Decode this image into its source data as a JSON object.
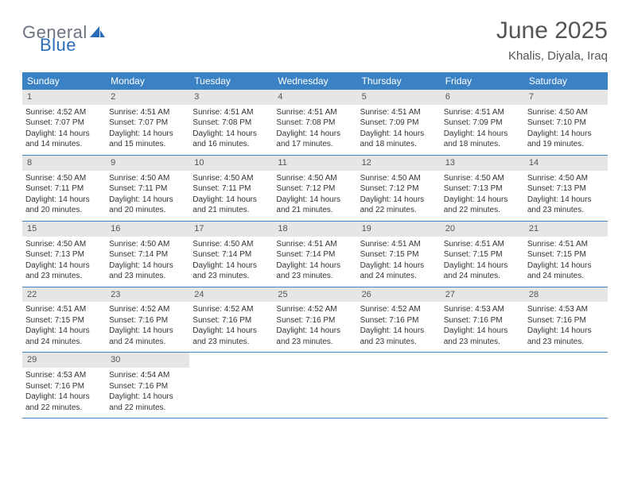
{
  "brand": {
    "word1": "General",
    "word2": "Blue"
  },
  "title": "June 2025",
  "location": "Khalis, Diyala, Iraq",
  "colors": {
    "header_bg": "#3b82c4",
    "header_text": "#ffffff",
    "daynum_bg": "#e6e6e6",
    "border": "#3b82c4",
    "logo_gray": "#6b7280",
    "logo_blue": "#2a6db8"
  },
  "weekdays": [
    "Sunday",
    "Monday",
    "Tuesday",
    "Wednesday",
    "Thursday",
    "Friday",
    "Saturday"
  ],
  "weeks": [
    [
      {
        "n": 1,
        "sr": "4:52 AM",
        "ss": "7:07 PM",
        "dl": "14 hours and 14 minutes."
      },
      {
        "n": 2,
        "sr": "4:51 AM",
        "ss": "7:07 PM",
        "dl": "14 hours and 15 minutes."
      },
      {
        "n": 3,
        "sr": "4:51 AM",
        "ss": "7:08 PM",
        "dl": "14 hours and 16 minutes."
      },
      {
        "n": 4,
        "sr": "4:51 AM",
        "ss": "7:08 PM",
        "dl": "14 hours and 17 minutes."
      },
      {
        "n": 5,
        "sr": "4:51 AM",
        "ss": "7:09 PM",
        "dl": "14 hours and 18 minutes."
      },
      {
        "n": 6,
        "sr": "4:51 AM",
        "ss": "7:09 PM",
        "dl": "14 hours and 18 minutes."
      },
      {
        "n": 7,
        "sr": "4:50 AM",
        "ss": "7:10 PM",
        "dl": "14 hours and 19 minutes."
      }
    ],
    [
      {
        "n": 8,
        "sr": "4:50 AM",
        "ss": "7:11 PM",
        "dl": "14 hours and 20 minutes."
      },
      {
        "n": 9,
        "sr": "4:50 AM",
        "ss": "7:11 PM",
        "dl": "14 hours and 20 minutes."
      },
      {
        "n": 10,
        "sr": "4:50 AM",
        "ss": "7:11 PM",
        "dl": "14 hours and 21 minutes."
      },
      {
        "n": 11,
        "sr": "4:50 AM",
        "ss": "7:12 PM",
        "dl": "14 hours and 21 minutes."
      },
      {
        "n": 12,
        "sr": "4:50 AM",
        "ss": "7:12 PM",
        "dl": "14 hours and 22 minutes."
      },
      {
        "n": 13,
        "sr": "4:50 AM",
        "ss": "7:13 PM",
        "dl": "14 hours and 22 minutes."
      },
      {
        "n": 14,
        "sr": "4:50 AM",
        "ss": "7:13 PM",
        "dl": "14 hours and 23 minutes."
      }
    ],
    [
      {
        "n": 15,
        "sr": "4:50 AM",
        "ss": "7:13 PM",
        "dl": "14 hours and 23 minutes."
      },
      {
        "n": 16,
        "sr": "4:50 AM",
        "ss": "7:14 PM",
        "dl": "14 hours and 23 minutes."
      },
      {
        "n": 17,
        "sr": "4:50 AM",
        "ss": "7:14 PM",
        "dl": "14 hours and 23 minutes."
      },
      {
        "n": 18,
        "sr": "4:51 AM",
        "ss": "7:14 PM",
        "dl": "14 hours and 23 minutes."
      },
      {
        "n": 19,
        "sr": "4:51 AM",
        "ss": "7:15 PM",
        "dl": "14 hours and 24 minutes."
      },
      {
        "n": 20,
        "sr": "4:51 AM",
        "ss": "7:15 PM",
        "dl": "14 hours and 24 minutes."
      },
      {
        "n": 21,
        "sr": "4:51 AM",
        "ss": "7:15 PM",
        "dl": "14 hours and 24 minutes."
      }
    ],
    [
      {
        "n": 22,
        "sr": "4:51 AM",
        "ss": "7:15 PM",
        "dl": "14 hours and 24 minutes."
      },
      {
        "n": 23,
        "sr": "4:52 AM",
        "ss": "7:16 PM",
        "dl": "14 hours and 24 minutes."
      },
      {
        "n": 24,
        "sr": "4:52 AM",
        "ss": "7:16 PM",
        "dl": "14 hours and 23 minutes."
      },
      {
        "n": 25,
        "sr": "4:52 AM",
        "ss": "7:16 PM",
        "dl": "14 hours and 23 minutes."
      },
      {
        "n": 26,
        "sr": "4:52 AM",
        "ss": "7:16 PM",
        "dl": "14 hours and 23 minutes."
      },
      {
        "n": 27,
        "sr": "4:53 AM",
        "ss": "7:16 PM",
        "dl": "14 hours and 23 minutes."
      },
      {
        "n": 28,
        "sr": "4:53 AM",
        "ss": "7:16 PM",
        "dl": "14 hours and 23 minutes."
      }
    ],
    [
      {
        "n": 29,
        "sr": "4:53 AM",
        "ss": "7:16 PM",
        "dl": "14 hours and 22 minutes."
      },
      {
        "n": 30,
        "sr": "4:54 AM",
        "ss": "7:16 PM",
        "dl": "14 hours and 22 minutes."
      },
      null,
      null,
      null,
      null,
      null
    ]
  ],
  "labels": {
    "sunrise": "Sunrise:",
    "sunset": "Sunset:",
    "daylight": "Daylight:"
  }
}
